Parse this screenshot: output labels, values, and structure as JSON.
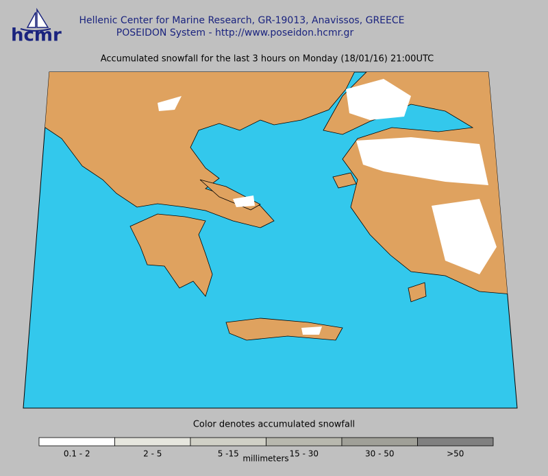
{
  "header": {
    "logo": "hcmr",
    "organization": "Hellenic Center for Marine Research, GR-19013, Anavissos, GREECE",
    "system": "POSEIDON System - http://www.poseidon.hcmr.gr"
  },
  "title": "Accumulated snowfall for the last 3 hours on Monday (18/01/16) 21:00UTC",
  "legend": {
    "title": "Color denotes accumulated snowfall",
    "unit": "millimeters",
    "classes": [
      {
        "label": "0.1 - 2",
        "color": "#ffffff"
      },
      {
        "label": "2 - 5",
        "color": "#e6e6de"
      },
      {
        "label": "5 -15",
        "color": "#d0d0c6"
      },
      {
        "label": "15 - 30",
        "color": "#b8b8ae"
      },
      {
        "label": "30 - 50",
        "color": "#a0a098"
      },
      {
        "label": ">50",
        "color": "#808080"
      }
    ]
  }
}
